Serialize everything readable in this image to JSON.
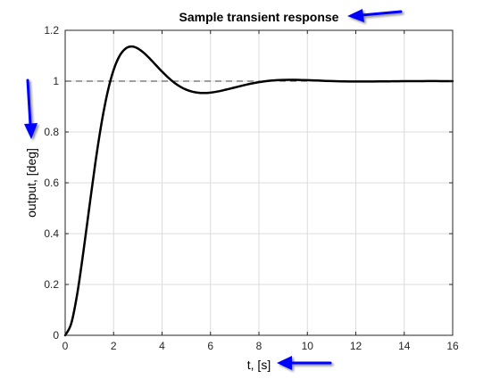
{
  "chart_data": {
    "type": "line",
    "title": "Sample transient response",
    "xlabel": "t, [s]",
    "ylabel": "output, [deg]",
    "xlim": [
      0,
      16
    ],
    "ylim": [
      0,
      1.2
    ],
    "x_ticks": [
      0,
      2,
      4,
      6,
      8,
      10,
      12,
      14,
      16
    ],
    "y_ticks": [
      0,
      0.2,
      0.4,
      0.6,
      0.8,
      1,
      1.2
    ],
    "x_tick_labels": [
      "0",
      "2",
      "4",
      "6",
      "8",
      "10",
      "12",
      "14",
      "16"
    ],
    "y_tick_labels": [
      "0",
      "0.2",
      "0.4",
      "0.6",
      "0.8",
      "1",
      "1.2"
    ],
    "grid": true,
    "reference_line": {
      "y": 1,
      "style": "dashed"
    },
    "series": [
      {
        "color": "#000000",
        "x": [
          0,
          0.25,
          0.5,
          0.75,
          1,
          1.25,
          1.5,
          1.75,
          2,
          2.25,
          2.5,
          2.75,
          3,
          3.25,
          3.5,
          3.75,
          4,
          4.25,
          4.5,
          4.75,
          5,
          5.25,
          5.5,
          5.75,
          6,
          6.25,
          6.5,
          6.75,
          7,
          7.25,
          7.5,
          7.75,
          8,
          8.25,
          8.5,
          8.75,
          9,
          9.25,
          9.5,
          9.75,
          10,
          10.25,
          10.5,
          10.75,
          11,
          11.25,
          11.5,
          11.75,
          12,
          12.25,
          12.5,
          12.75,
          13,
          13.25,
          13.5,
          13.75,
          14,
          14.25,
          14.5,
          14.75,
          15,
          15.25,
          15.5,
          15.75,
          16
        ],
        "y": [
          0,
          0.0462,
          0.1641,
          0.3273,
          0.5061,
          0.6812,
          0.8341,
          0.9562,
          1.0441,
          1.1,
          1.1287,
          1.1363,
          1.1286,
          1.1111,
          1.088,
          1.0627,
          1.0376,
          1.0145,
          0.9945,
          0.9784,
          0.9665,
          0.9586,
          0.9544,
          0.9534,
          0.955,
          0.9585,
          0.9634,
          0.969,
          0.975,
          0.981,
          0.9866,
          0.9916,
          0.9959,
          0.9994,
          1.002,
          1.0038,
          1.0048,
          1.0052,
          1.0051,
          1.0046,
          1.0039,
          1.003,
          1.002,
          1.0011,
          1.0003,
          0.9996,
          0.9991,
          0.9987,
          0.9985,
          0.9985,
          0.9986,
          0.9987,
          0.9989,
          0.9992,
          0.9994,
          0.9997,
          0.9999,
          1.0001,
          1.0002,
          1.0002,
          1.0003,
          1.0003,
          1.0002,
          1.0002,
          1.0001
        ]
      }
    ],
    "annotations": [
      {
        "type": "arrow",
        "color": "#0000ff",
        "target": "title"
      },
      {
        "type": "arrow",
        "color": "#0000ff",
        "target": "ylabel"
      },
      {
        "type": "arrow",
        "color": "#0000ff",
        "target": "xlabel"
      }
    ]
  }
}
